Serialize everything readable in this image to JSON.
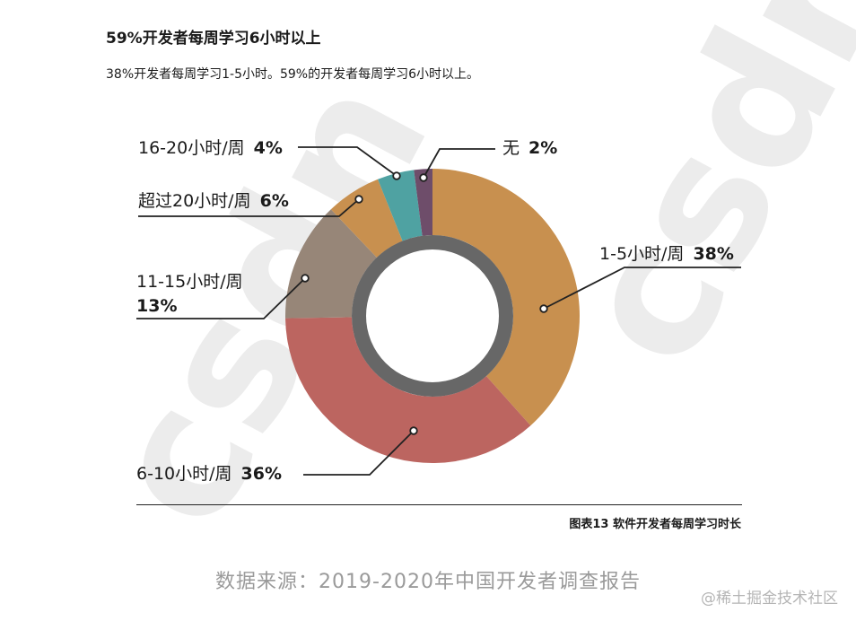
{
  "title": "59%开发者每周学习6小时以上",
  "subtitle": "38%开发者每周学习1-5小时。59%的开发者每周学习6小时以上。",
  "watermark": "csdn",
  "caption": "图表13 软件开发者每周学习时长",
  "source": "数据来源：2019-2020年中国开发者调查报告",
  "credit": "@稀土掘金技术社区",
  "chart_data": {
    "type": "pie",
    "variant": "donut",
    "title": "",
    "slices": [
      {
        "label": "1-5小时/周",
        "value": 38,
        "value_label": "38%",
        "color": "#C8904F"
      },
      {
        "label": "6-10小时/周",
        "value": 36,
        "value_label": "36%",
        "color": "#BC6560"
      },
      {
        "label": "11-15小时/周",
        "value": 13,
        "value_label": "13%",
        "color": "#978678"
      },
      {
        "label": "超过20小时/周",
        "value": 6,
        "value_label": "6%",
        "color": "#C8904F"
      },
      {
        "label": "16-20小时/周",
        "value": 4,
        "value_label": "4%",
        "color": "#4FA2A2"
      },
      {
        "label": "无",
        "value": 2,
        "value_label": "2%",
        "color": "#6E4D6A"
      }
    ],
    "inner_ring_color": "#3c3c3c"
  }
}
